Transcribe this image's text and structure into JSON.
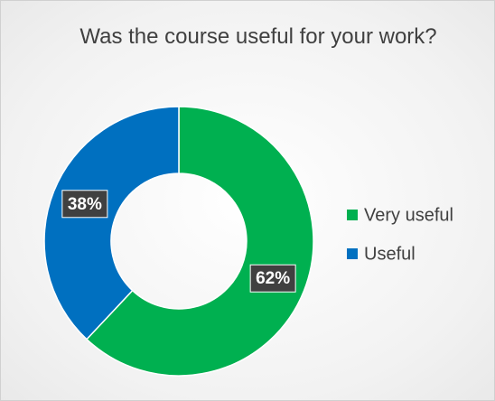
{
  "chart_data": {
    "type": "donut",
    "title": "Was the course useful for your work?",
    "categories": [
      "Very useful",
      "Useful"
    ],
    "values": [
      62,
      38
    ],
    "value_labels": [
      "62%",
      "38%"
    ],
    "colors": [
      "#00b050",
      "#0070c0"
    ],
    "legend": "right"
  }
}
